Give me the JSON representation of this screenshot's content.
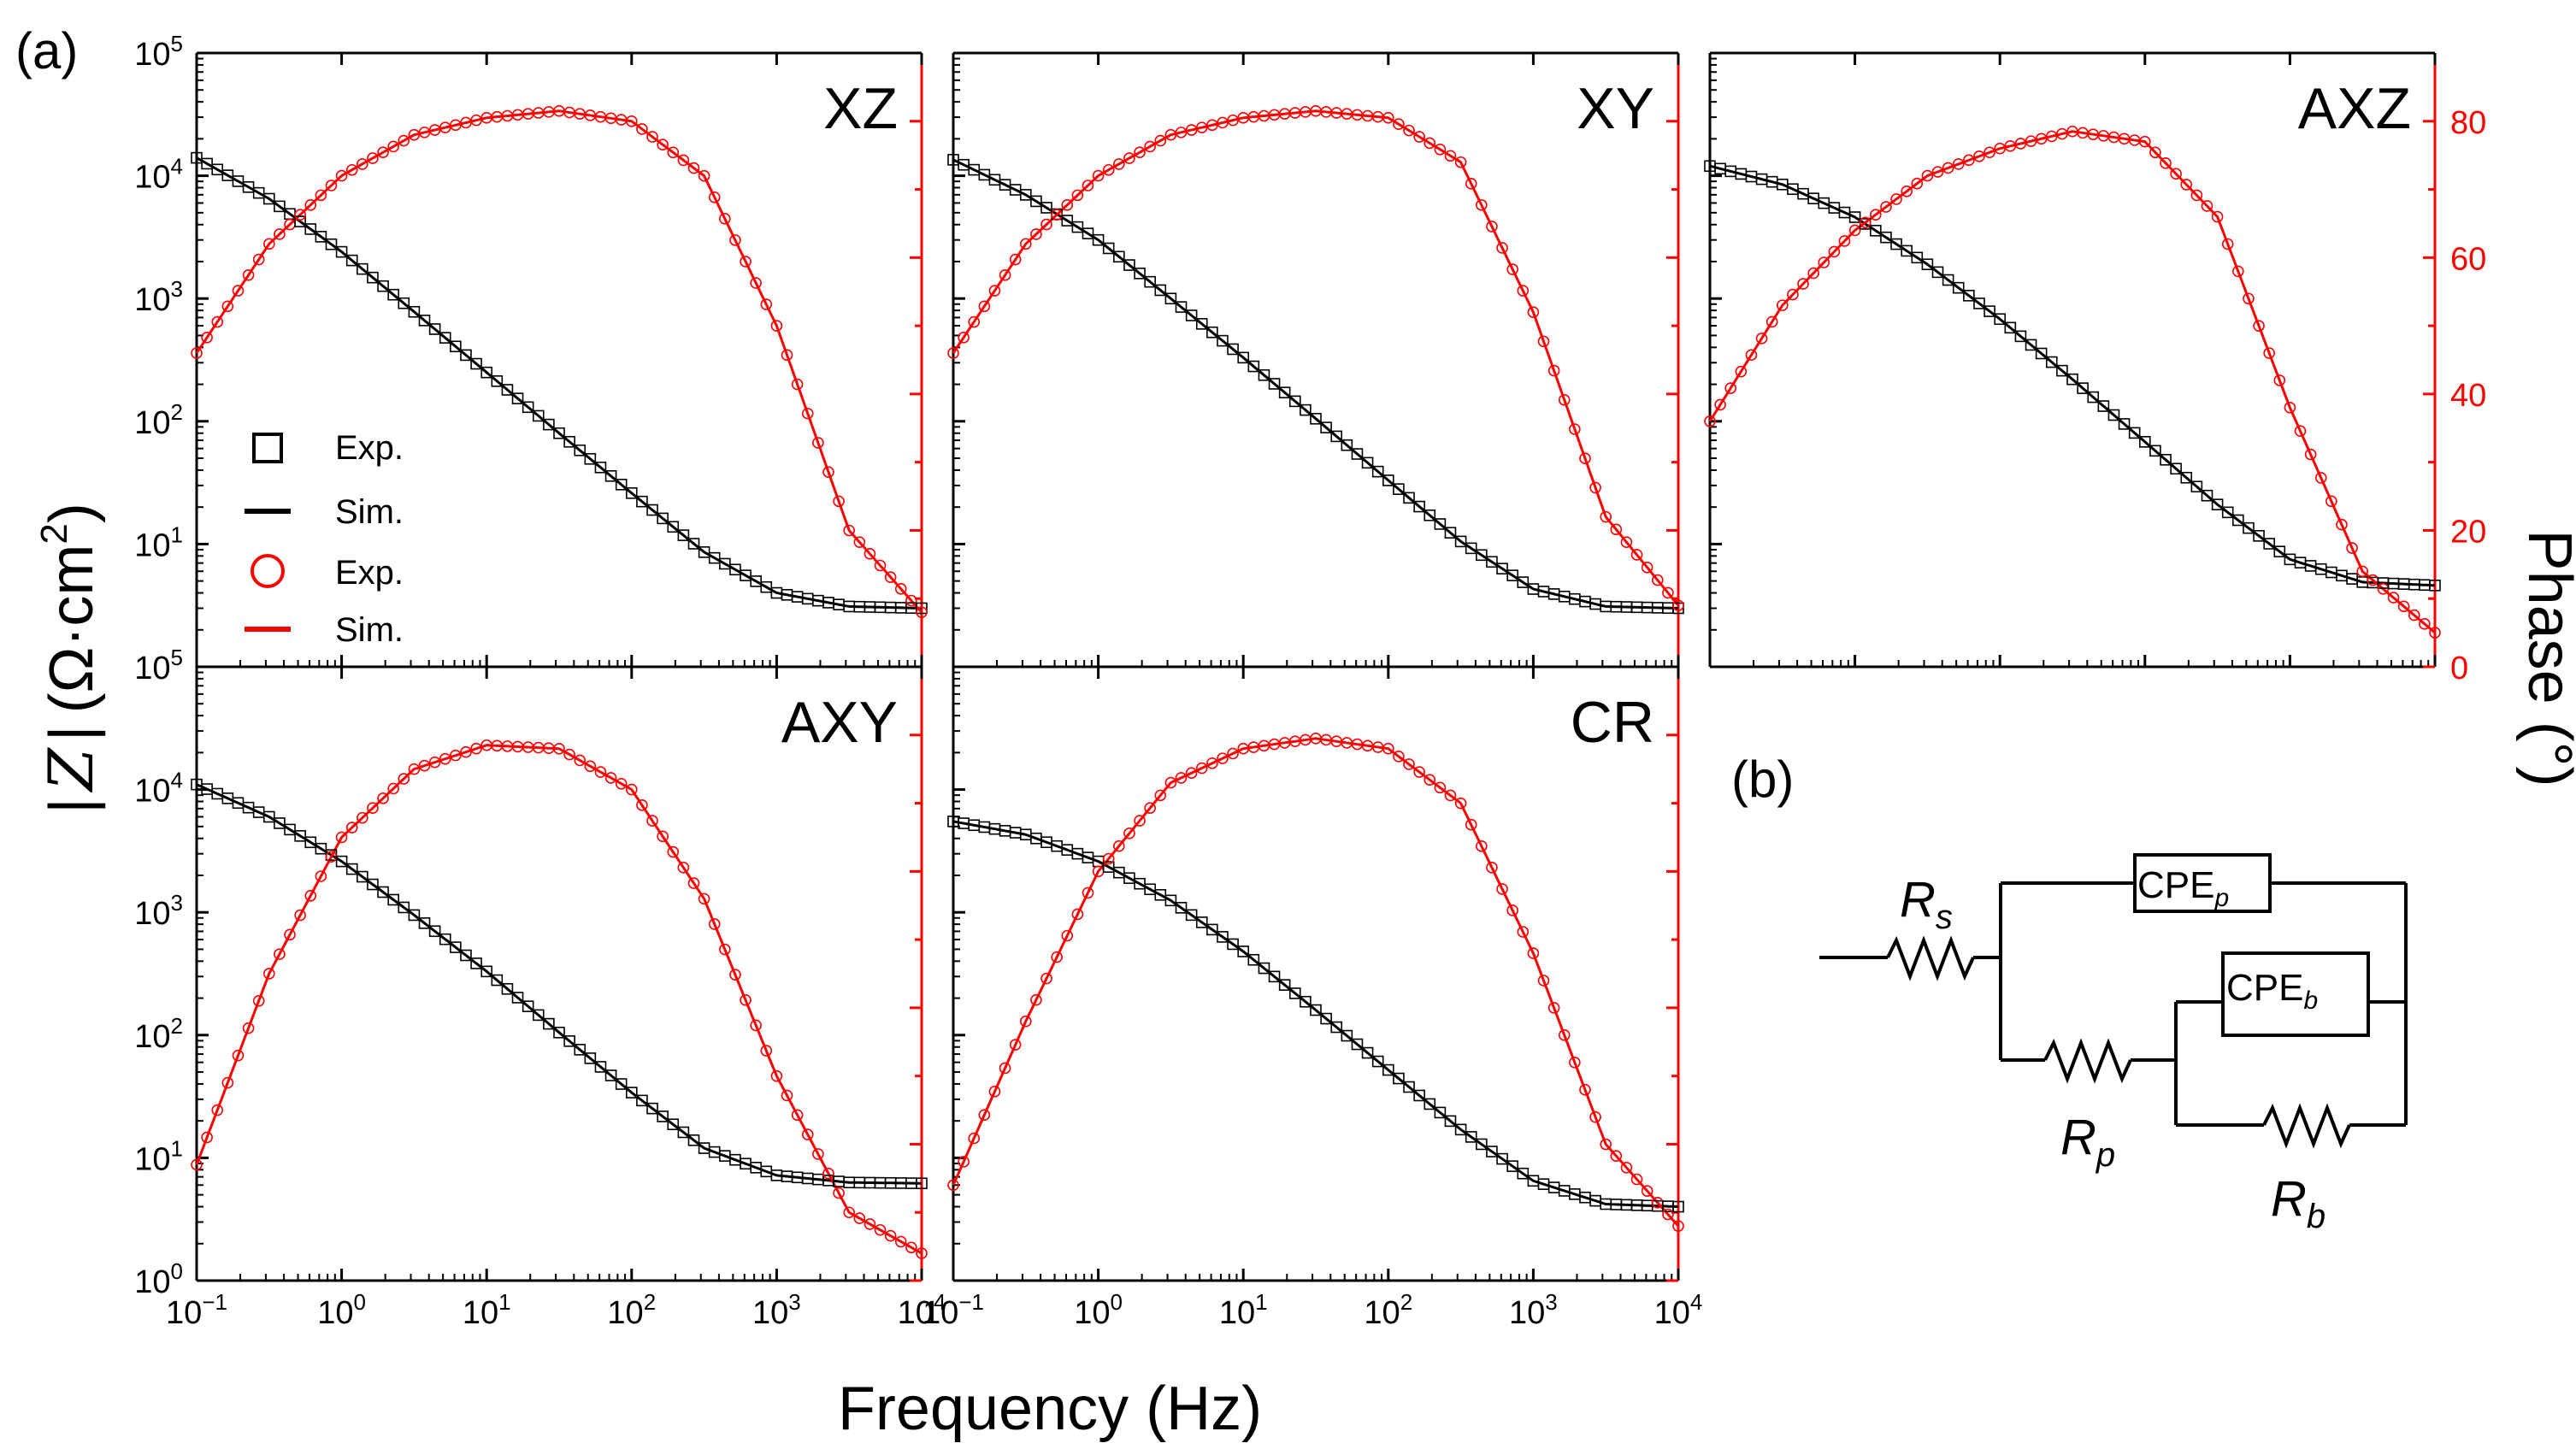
{
  "figure": {
    "panel_a_label": "(a)",
    "panel_b_label": "(b)",
    "y_left_label": "|Z| (Ω·cm²)",
    "y_left_label_parts": {
      "bars": "|",
      "z": "Z",
      "bars2": "|",
      "unit_open": "(Ω·cm",
      "unit_exp": "2",
      "unit_close": ")"
    },
    "y_right_label": "Phase (°)",
    "x_label": "Frequency (Hz)"
  },
  "legend": {
    "items": [
      {
        "label": "Exp.",
        "symbol": "square",
        "color": "#000000"
      },
      {
        "label": "Sim.",
        "symbol": "line",
        "color": "#000000"
      },
      {
        "label": "Exp.",
        "symbol": "circle",
        "color": "#ff0000"
      },
      {
        "label": "Sim.",
        "symbol": "line",
        "color": "#ff0000"
      }
    ]
  },
  "axis_ticks": {
    "x": [
      {
        "base": "10",
        "exp": "−1"
      },
      {
        "base": "10",
        "exp": "0"
      },
      {
        "base": "10",
        "exp": "1"
      },
      {
        "base": "10",
        "exp": "2"
      },
      {
        "base": "10",
        "exp": "3"
      },
      {
        "base": "10",
        "exp": "4"
      }
    ],
    "y_left": [
      {
        "base": "10",
        "exp": "0"
      },
      {
        "base": "10",
        "exp": "1"
      },
      {
        "base": "10",
        "exp": "2"
      },
      {
        "base": "10",
        "exp": "3"
      },
      {
        "base": "10",
        "exp": "4"
      },
      {
        "base": "10",
        "exp": "5"
      }
    ],
    "y_right": [
      "0",
      "20",
      "40",
      "60",
      "80"
    ]
  },
  "circuit": {
    "Rs": {
      "main": "R",
      "sub": "s"
    },
    "Rp": {
      "main": "R",
      "sub": "p"
    },
    "Rb": {
      "main": "R",
      "sub": "b"
    },
    "CPEp": {
      "main": "CPE",
      "sub": "p"
    },
    "CPEb": {
      "main": "CPE",
      "sub": "b"
    }
  },
  "colors": {
    "impedance": "#000000",
    "phase": "#ff0000"
  },
  "chart_data": [
    {
      "type": "line",
      "title": "XZ",
      "x_range_hz": [
        0.1,
        10000
      ],
      "ylim_left": [
        1,
        100000
      ],
      "ylim_right": [
        0,
        90
      ],
      "series": [
        {
          "name": "|Z| Exp./Sim.",
          "x": [
            0.1,
            0.316,
            1,
            3.16,
            10,
            31.6,
            100,
            316,
            1000,
            3160,
            10000
          ],
          "values": [
            14000,
            6500,
            2400,
            780,
            250,
            80,
            26,
            8.6,
            4.0,
            3.1,
            3.0
          ]
        },
        {
          "name": "Phase Exp./Sim.",
          "x": [
            0.1,
            0.316,
            1,
            3.16,
            10,
            31.6,
            100,
            316,
            1000,
            3160,
            10000
          ],
          "values": [
            46,
            62,
            72,
            78,
            80.5,
            81.5,
            80,
            72,
            50,
            20,
            8
          ]
        }
      ]
    },
    {
      "type": "line",
      "title": "XY",
      "x_range_hz": [
        0.1,
        10000
      ],
      "ylim_left": [
        1,
        100000
      ],
      "ylim_right": [
        0,
        90
      ],
      "series": [
        {
          "name": "|Z| Exp./Sim.",
          "x": [
            0.1,
            0.316,
            1,
            3.16,
            10,
            31.6,
            100,
            316,
            1000,
            3160,
            10000
          ],
          "values": [
            13500,
            7000,
            3000,
            1000,
            330,
            105,
            33,
            10.5,
            4.3,
            3.1,
            3.0
          ]
        },
        {
          "name": "Phase Exp./Sim.",
          "x": [
            0.1,
            0.316,
            1,
            3.16,
            10,
            31.6,
            100,
            316,
            1000,
            3160,
            10000
          ],
          "values": [
            46,
            62,
            72,
            78,
            80.5,
            81.5,
            80.5,
            74,
            52,
            22,
            9
          ]
        }
      ]
    },
    {
      "type": "line",
      "title": "AXZ",
      "x_range_hz": [
        0.1,
        10000
      ],
      "ylim_left": [
        1,
        100000
      ],
      "ylim_right": [
        0,
        90
      ],
      "series": [
        {
          "name": "|Z| Exp./Sim.",
          "x": [
            0.1,
            0.316,
            1,
            3.16,
            10,
            31.6,
            100,
            316,
            1000,
            3160,
            10000
          ],
          "values": [
            12000,
            8500,
            4600,
            1900,
            680,
            220,
            68,
            21,
            7.5,
            4.9,
            4.6
          ]
        },
        {
          "name": "Phase Exp./Sim.",
          "x": [
            0.1,
            0.316,
            1,
            3.16,
            10,
            31.6,
            100,
            316,
            1000,
            3160,
            10000
          ],
          "values": [
            36,
            53,
            64,
            72,
            76,
            78.5,
            77,
            66,
            38,
            14,
            5
          ]
        }
      ]
    },
    {
      "type": "line",
      "title": "AXY",
      "x_range_hz": [
        0.1,
        10000
      ],
      "ylim_left": [
        1,
        100000
      ],
      "ylim_right": [
        0,
        90
      ],
      "series": [
        {
          "name": "|Z| Exp./Sim.",
          "x": [
            0.1,
            0.316,
            1,
            3.16,
            10,
            31.6,
            100,
            316,
            1000,
            3160,
            10000
          ],
          "values": [
            11000,
            6000,
            2600,
            950,
            330,
            105,
            34,
            12,
            7.2,
            6.3,
            6.2
          ]
        },
        {
          "name": "Phase Exp./Sim.",
          "x": [
            0.1,
            0.316,
            1,
            3.16,
            10,
            31.6,
            100,
            316,
            1000,
            3160,
            10000
          ],
          "values": [
            17,
            45,
            65,
            75,
            78.5,
            78,
            72,
            56,
            30,
            10,
            4
          ]
        }
      ]
    },
    {
      "type": "line",
      "title": "CR",
      "x_range_hz": [
        0.1,
        10000
      ],
      "ylim_left": [
        1,
        100000
      ],
      "ylim_right": [
        0,
        90
      ],
      "series": [
        {
          "name": "|Z| Exp./Sim.",
          "x": [
            0.1,
            0.316,
            1,
            3.16,
            10,
            31.6,
            100,
            316,
            1000,
            3160,
            10000
          ],
          "values": [
            5500,
            4300,
            2600,
            1250,
            480,
            160,
            52,
            17,
            6.5,
            4.2,
            4.0
          ]
        },
        {
          "name": "Phase Exp./Sim.",
          "x": [
            0.1,
            0.316,
            1,
            3.16,
            10,
            31.6,
            100,
            316,
            1000,
            3160,
            10000
          ],
          "values": [
            14,
            38,
            60,
            73,
            78,
            79.5,
            78,
            70,
            48,
            20,
            8
          ]
        }
      ]
    }
  ]
}
